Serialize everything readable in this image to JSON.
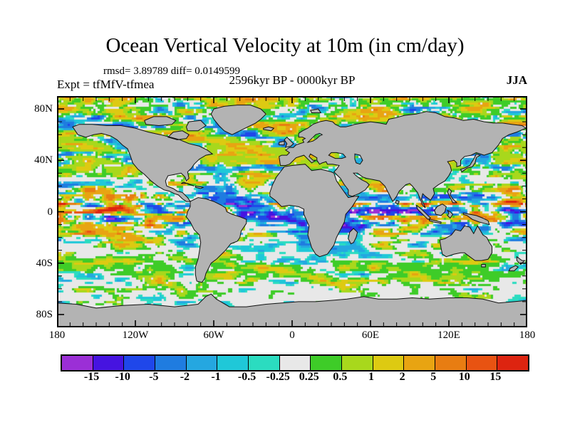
{
  "header": {
    "title": "Ocean Vertical Velocity at 10m (in cm/day)",
    "stats": "rmsd= 3.89789 diff= 0.0149599",
    "experiment": "Expt = tfMfV-tfmea",
    "period": "2596kyr BP - 0000kyr BP",
    "season": "JJA"
  },
  "map": {
    "lat_ticks": [
      {
        "label": "80N",
        "lat": 80
      },
      {
        "label": "40N",
        "lat": 40
      },
      {
        "label": "0",
        "lat": 0
      },
      {
        "label": "40S",
        "lat": -40
      },
      {
        "label": "80S",
        "lat": -80
      }
    ],
    "lon_ticks": [
      {
        "label": "180",
        "lon": -180
      },
      {
        "label": "120W",
        "lon": -120
      },
      {
        "label": "60W",
        "lon": -60
      },
      {
        "label": "0",
        "lon": 0
      },
      {
        "label": "60E",
        "lon": 60
      },
      {
        "label": "120E",
        "lon": 120
      },
      {
        "label": "180",
        "lon": 180
      }
    ],
    "land_color": "#b3b3b3",
    "coast_color": "#111111"
  },
  "colorbar": {
    "labels": [
      "-15",
      "-10",
      "-5",
      "-2",
      "-1",
      "-0.5",
      "-0.25",
      "0.25",
      "0.5",
      "1",
      "2",
      "5",
      "10",
      "15"
    ],
    "colors": [
      "#9b2fd6",
      "#4613e0",
      "#1f47ea",
      "#1f7ce0",
      "#25a7e0",
      "#1fc8d8",
      "#2bdcc0",
      "#e8e8e8",
      "#3ecc28",
      "#a8d81c",
      "#ddca12",
      "#e8a412",
      "#e87d12",
      "#e85312",
      "#dd2410"
    ]
  },
  "chart_data": {
    "type": "heatmap",
    "title": "Ocean Vertical Velocity at 10m (in cm/day)",
    "subtitle": "rmsd= 3.89789 diff= 0.0149599",
    "experiment": "Expt = tfMfV-tfmea",
    "period": "2596kyr BP - 0000kyr BP",
    "season": "JJA",
    "rmsd": 3.89789,
    "diff": 0.0149599,
    "units": "cm/day",
    "projection": "equirectangular world map, lon 180W to 180E centered on 0, lat 90N to 90S",
    "x_tick_labels": [
      "180",
      "120W",
      "60W",
      "0",
      "60E",
      "120E",
      "180"
    ],
    "y_tick_labels": [
      "80N",
      "40N",
      "0",
      "40S",
      "80S"
    ],
    "colorbar_levels": [
      -15,
      -10,
      -5,
      -2,
      -1,
      -0.5,
      -0.25,
      0.25,
      0.5,
      1,
      2,
      5,
      10,
      15
    ],
    "colorbar_colors": [
      "#9b2fd6",
      "#4613e0",
      "#1f47ea",
      "#1f7ce0",
      "#25a7e0",
      "#1fc8d8",
      "#2bdcc0",
      "#e8e8e8",
      "#3ecc28",
      "#a8d81c",
      "#ddca12",
      "#e8a412",
      "#e87d12",
      "#e85312",
      "#dd2410"
    ],
    "legend_position": "bottom horizontal colorbar",
    "grid": false
  }
}
